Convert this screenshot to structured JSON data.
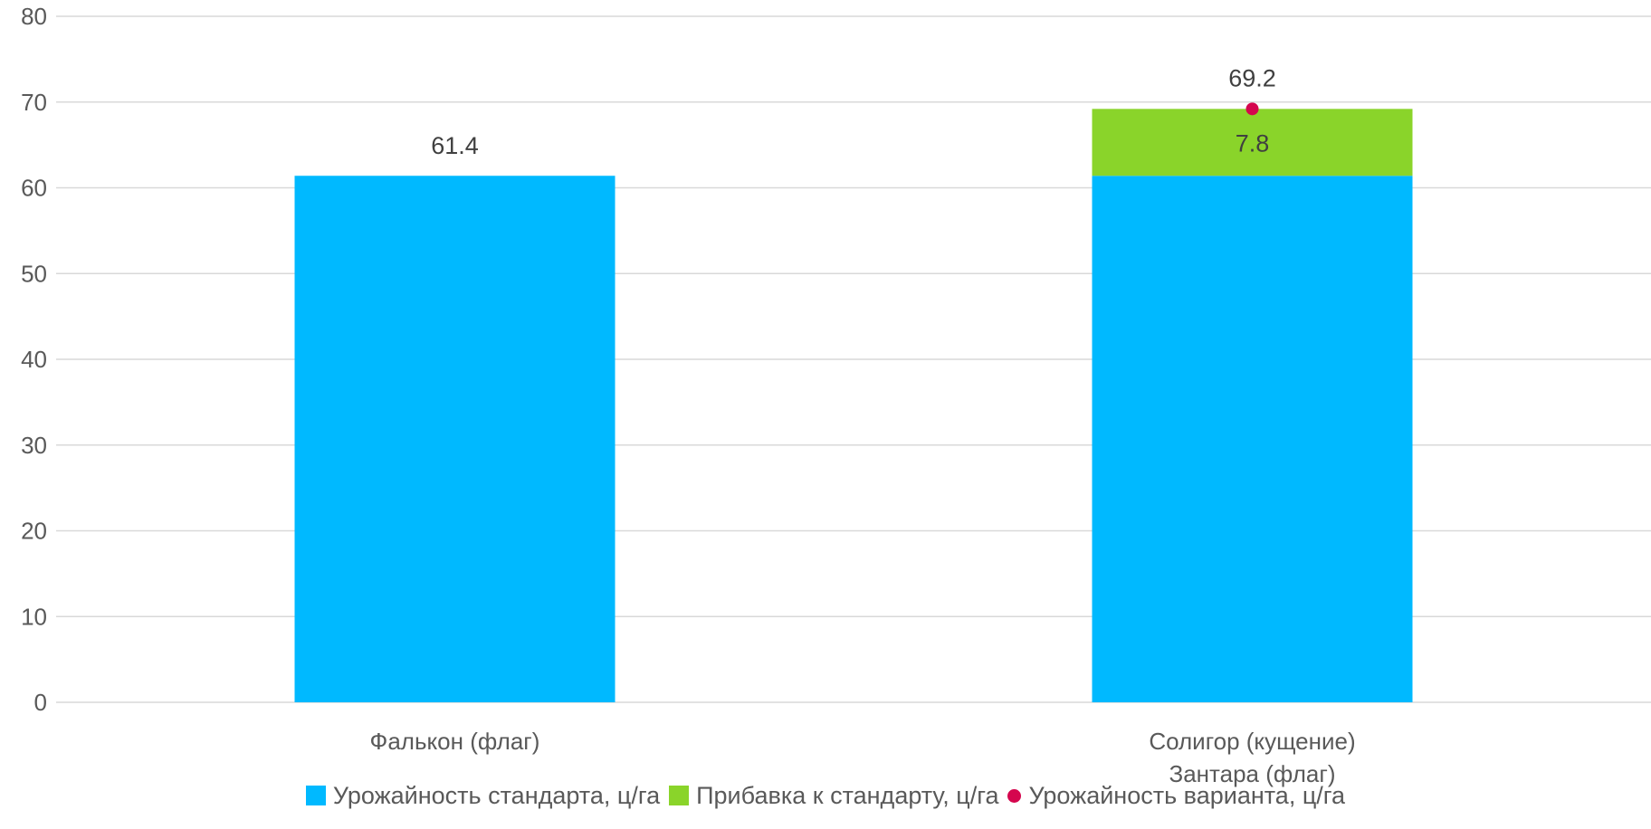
{
  "chart_data": {
    "type": "bar",
    "stacked": true,
    "categories": [
      [
        "Фалькон (флаг)"
      ],
      [
        "Солигор (кущение)",
        "Зантара (флаг)"
      ]
    ],
    "series": [
      {
        "name": "Урожайность стандарта, ц/га",
        "kind": "bar",
        "color": "#00B9FF",
        "values": [
          61.4,
          61.4
        ],
        "labels": [
          "61.4",
          null
        ]
      },
      {
        "name": "Прибавка к стандарту, ц/га",
        "kind": "bar",
        "color": "#8AD42A",
        "values": [
          null,
          7.8
        ],
        "labels": [
          null,
          "7.8"
        ]
      },
      {
        "name": "Урожайность варианта, ц/га",
        "kind": "point",
        "color": "#D5064E",
        "values": [
          null,
          69.2
        ],
        "labels": [
          null,
          "69.2"
        ]
      }
    ],
    "ylim": [
      0,
      80
    ],
    "yticks": [
      0,
      10,
      20,
      30,
      40,
      50,
      60,
      70,
      80
    ],
    "grid": true,
    "legend_position": "bottom"
  }
}
